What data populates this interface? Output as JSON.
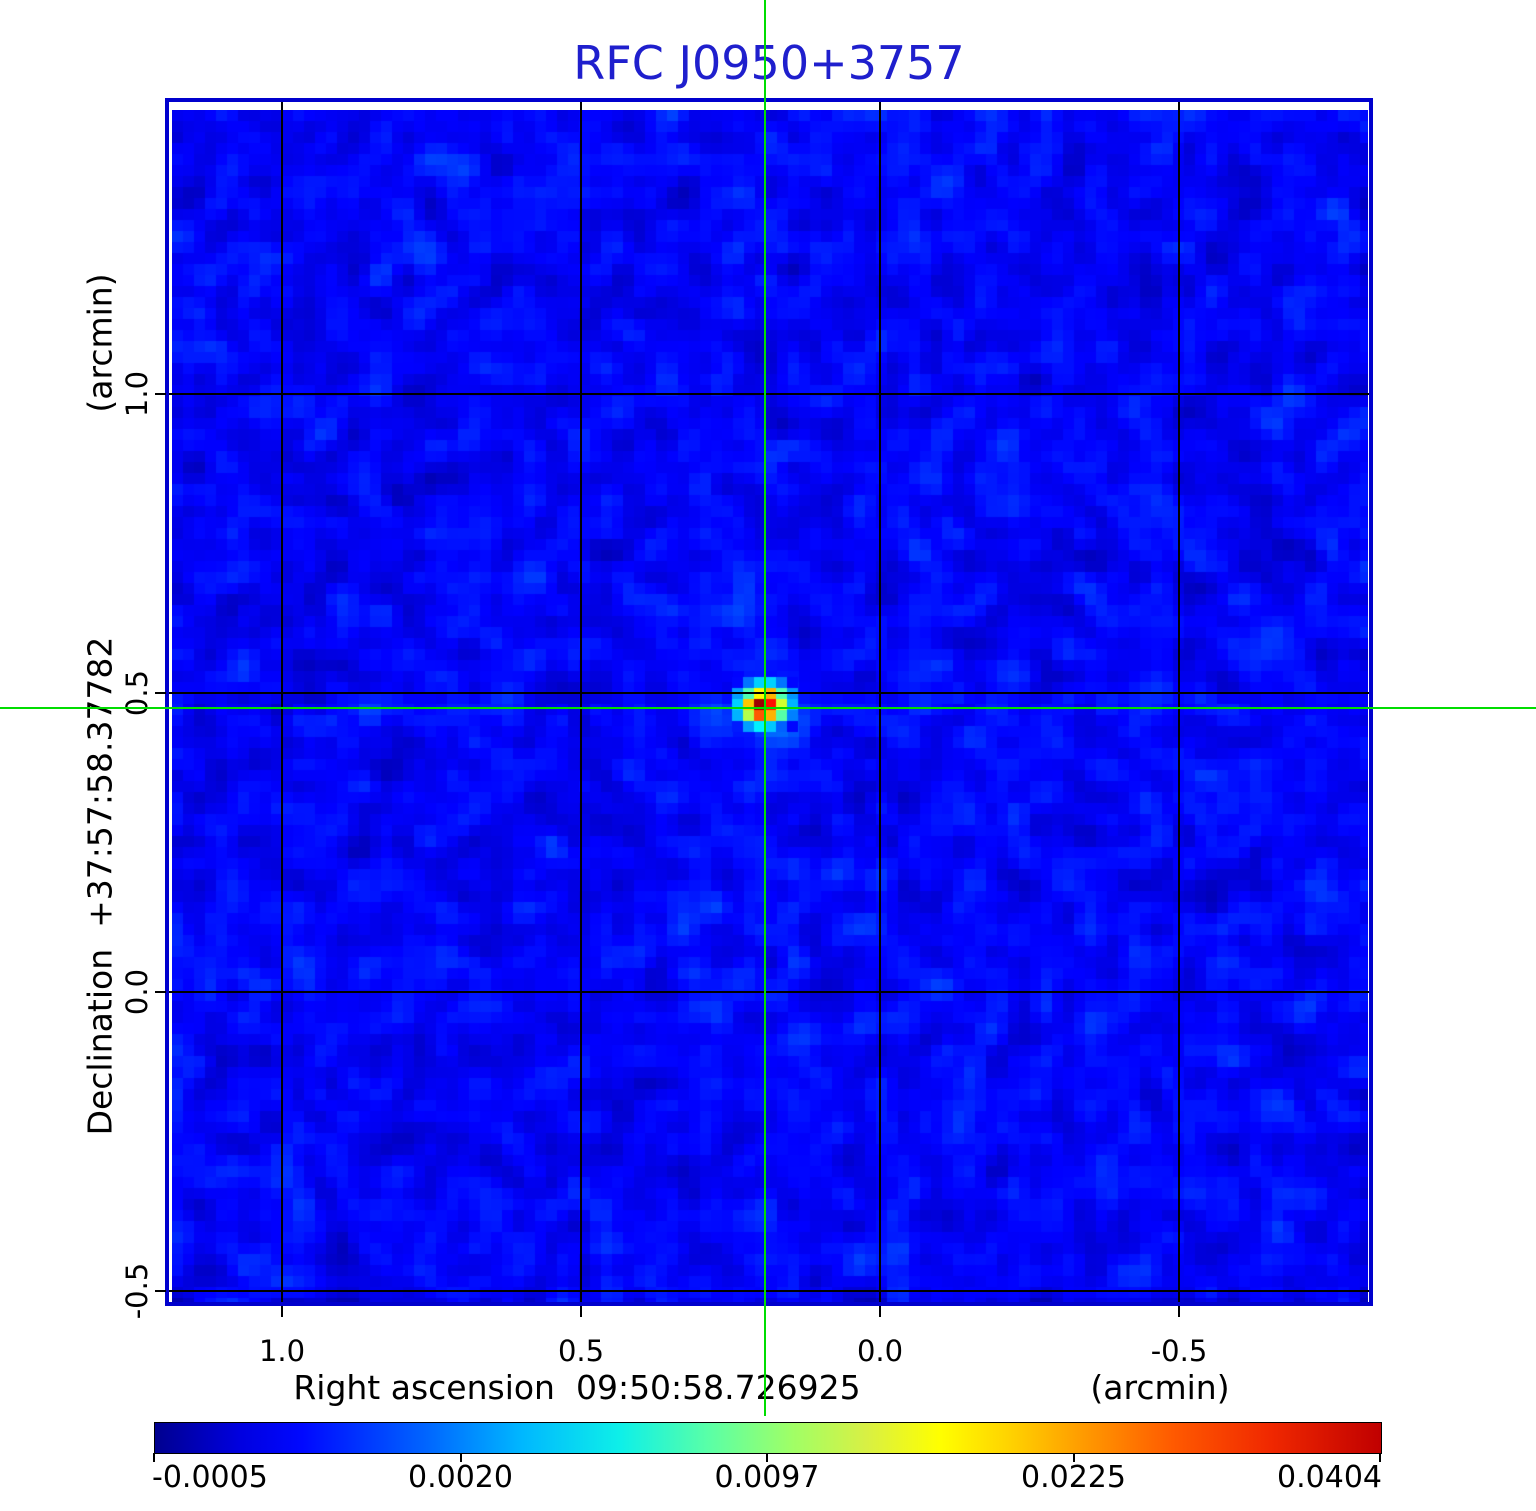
{
  "chart_data": {
    "type": "heatmap",
    "title": "RFC J0950+3757",
    "title_color": "#1f1fcd",
    "x_axis": {
      "label": "Right ascension  09:50:58.726925",
      "unit": "(arcmin)",
      "ticks": [
        1.0,
        0.5,
        0.0,
        -0.5
      ],
      "tick_labels": [
        "1.0",
        "0.5",
        "0.0",
        "-0.5"
      ],
      "range_arcmin": [
        1.2,
        -0.82
      ]
    },
    "y_axis": {
      "label": "Declination  +37:57:58.37782",
      "unit": "(arcmin)",
      "ticks": [
        1.0,
        0.5,
        0.0,
        -0.5
      ],
      "tick_labels": [
        "1.0",
        "0.5",
        "0.0",
        "-0.5"
      ],
      "range_arcmin": [
        -0.52,
        1.5
      ]
    },
    "colorbar": {
      "colormap": "jet",
      "tick_labels": [
        "-0.0005",
        "0.0020",
        "0.0097",
        "0.0225",
        "0.0404"
      ]
    },
    "grid": true,
    "grid_color": "#000000",
    "crosshair": {
      "color": "#00dd00",
      "ra_offset_arcmin": 0.192,
      "dec_offset_arcmin": 0.475
    },
    "source_peak": {
      "ra_offset_arcmin": 0.192,
      "dec_offset_arcmin": 0.475,
      "max_value": 0.0404,
      "pattern": [
        [
          0.13,
          0.24,
          0.33,
          0.33,
          0.24,
          0.13
        ],
        [
          0.28,
          0.45,
          0.63,
          0.7,
          0.45,
          0.27
        ],
        [
          0.33,
          0.68,
          0.97,
          0.86,
          0.58,
          0.3
        ],
        [
          0.3,
          0.55,
          0.79,
          0.7,
          0.46,
          0.25
        ],
        [
          0.15,
          0.28,
          0.36,
          0.32,
          0.22,
          0.13
        ]
      ]
    }
  }
}
